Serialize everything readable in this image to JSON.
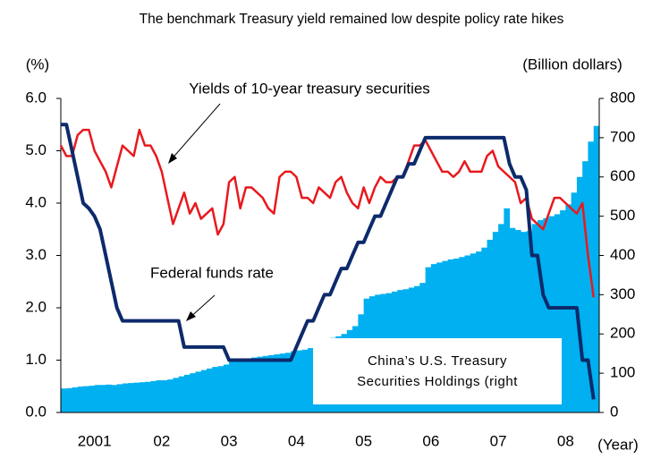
{
  "chart_data": {
    "type": "combo",
    "title": "The benchmark Treasury yield remained low despite policy rate hikes",
    "y_label": "(%)",
    "y2_label": "(Billion dollars)",
    "x_label": "(Year)",
    "xlim": [
      2001,
      2009
    ],
    "xticks": [
      {
        "value": 2001.5,
        "label": "2001"
      },
      {
        "value": 2002.5,
        "label": "02"
      },
      {
        "value": 2003.5,
        "label": "03"
      },
      {
        "value": 2004.5,
        "label": "04"
      },
      {
        "value": 2005.5,
        "label": "05"
      },
      {
        "value": 2006.5,
        "label": "06"
      },
      {
        "value": 2007.5,
        "label": "07"
      },
      {
        "value": 2008.5,
        "label": "08"
      }
    ],
    "ylim": [
      0,
      6
    ],
    "yticks": [
      {
        "value": 0,
        "label": "0.0"
      },
      {
        "value": 1,
        "label": "1.0"
      },
      {
        "value": 2,
        "label": "2.0"
      },
      {
        "value": 3,
        "label": "3.0"
      },
      {
        "value": 4,
        "label": "4.0"
      },
      {
        "value": 5,
        "label": "5.0"
      },
      {
        "value": 6,
        "label": "6.0"
      }
    ],
    "y2lim": [
      0,
      800
    ],
    "y2ticks": [
      0,
      100,
      200,
      300,
      400,
      500,
      600,
      700,
      800
    ],
    "x": [
      2001,
      2001.083,
      2001.167,
      2001.25,
      2001.333,
      2001.417,
      2001.5,
      2001.583,
      2001.667,
      2001.75,
      2001.833,
      2001.917,
      2002,
      2002.083,
      2002.167,
      2002.25,
      2002.333,
      2002.417,
      2002.5,
      2002.583,
      2002.667,
      2002.75,
      2002.833,
      2002.917,
      2003,
      2003.083,
      2003.167,
      2003.25,
      2003.333,
      2003.417,
      2003.5,
      2003.583,
      2003.667,
      2003.75,
      2003.833,
      2003.917,
      2004,
      2004.083,
      2004.167,
      2004.25,
      2004.333,
      2004.417,
      2004.5,
      2004.583,
      2004.667,
      2004.75,
      2004.833,
      2004.917,
      2005,
      2005.083,
      2005.167,
      2005.25,
      2005.333,
      2005.417,
      2005.5,
      2005.583,
      2005.667,
      2005.75,
      2005.833,
      2005.917,
      2006,
      2006.083,
      2006.167,
      2006.25,
      2006.333,
      2006.417,
      2006.5,
      2006.583,
      2006.667,
      2006.75,
      2006.833,
      2006.917,
      2007,
      2007.083,
      2007.167,
      2007.25,
      2007.333,
      2007.417,
      2007.5,
      2007.583,
      2007.667,
      2007.75,
      2007.833,
      2007.917,
      2008,
      2008.083,
      2008.167,
      2008.25,
      2008.333,
      2008.417,
      2008.5,
      2008.583,
      2008.667,
      2008.75,
      2008.833,
      2008.917
    ],
    "series": [
      {
        "name": "China’s U.S. Treasury Securities Holdings (right",
        "type": "bar",
        "axis": "y2",
        "color": "#00b0f0",
        "values": [
          61,
          62,
          64,
          66,
          67,
          68,
          70,
          70,
          71,
          70,
          72,
          74,
          75,
          76,
          77,
          78,
          80,
          82,
          82,
          84,
          88,
          92,
          96,
          100,
          104,
          108,
          112,
          116,
          118,
          122,
          130,
          134,
          136,
          138,
          140,
          142,
          144,
          146,
          148,
          150,
          152,
          156,
          158,
          160,
          164,
          170,
          176,
          184,
          190,
          194,
          200,
          210,
          220,
          250,
          290,
          296,
          300,
          302,
          304,
          308,
          312,
          314,
          318,
          322,
          330,
          370,
          378,
          382,
          386,
          390,
          392,
          396,
          400,
          405,
          410,
          420,
          440,
          460,
          480,
          520,
          470,
          465,
          460,
          462,
          480,
          490,
          495,
          500,
          505,
          515,
          530,
          560,
          600,
          640,
          690,
          730
        ]
      },
      {
        "name": "Yields of 10-year treasury securities",
        "type": "line",
        "color": "#e8191e",
        "values": [
          5.1,
          4.9,
          4.9,
          5.3,
          5.4,
          5.4,
          5.0,
          4.8,
          4.6,
          4.3,
          4.7,
          5.1,
          5.0,
          4.9,
          5.4,
          5.1,
          5.1,
          4.9,
          4.6,
          4.1,
          3.6,
          3.9,
          4.2,
          3.8,
          4.0,
          3.7,
          3.8,
          3.9,
          3.4,
          3.6,
          4.4,
          4.5,
          3.9,
          4.3,
          4.3,
          4.2,
          4.1,
          3.9,
          3.8,
          4.5,
          4.6,
          4.6,
          4.5,
          4.1,
          4.1,
          4.0,
          4.3,
          4.2,
          4.1,
          4.4,
          4.5,
          4.2,
          4.0,
          3.9,
          4.3,
          4.0,
          4.3,
          4.5,
          4.4,
          4.4,
          4.5,
          4.5,
          4.8,
          5.1,
          5.1,
          5.2,
          5.0,
          4.8,
          4.6,
          4.6,
          4.5,
          4.6,
          4.8,
          4.6,
          4.6,
          4.6,
          4.9,
          5.0,
          4.7,
          4.6,
          4.5,
          4.4,
          4.0,
          4.1,
          3.7,
          3.6,
          3.5,
          3.8,
          4.1,
          4.1,
          4.0,
          3.9,
          3.8,
          4.0,
          3.0,
          2.2
        ]
      },
      {
        "name": "Federal funds rate",
        "type": "line",
        "color": "#0d2a6b",
        "values": [
          5.5,
          5.5,
          5.0,
          4.5,
          4.0,
          3.9,
          3.75,
          3.5,
          3.0,
          2.5,
          2.0,
          1.75,
          1.75,
          1.75,
          1.75,
          1.75,
          1.75,
          1.75,
          1.75,
          1.75,
          1.75,
          1.75,
          1.25,
          1.25,
          1.25,
          1.25,
          1.25,
          1.25,
          1.25,
          1.25,
          1.0,
          1.0,
          1.0,
          1.0,
          1.0,
          1.0,
          1.0,
          1.0,
          1.0,
          1.0,
          1.0,
          1.0,
          1.25,
          1.5,
          1.75,
          1.75,
          2.0,
          2.25,
          2.25,
          2.5,
          2.75,
          2.75,
          3.0,
          3.25,
          3.25,
          3.5,
          3.75,
          3.75,
          4.0,
          4.25,
          4.5,
          4.5,
          4.75,
          4.75,
          5.0,
          5.25,
          5.25,
          5.25,
          5.25,
          5.25,
          5.25,
          5.25,
          5.25,
          5.25,
          5.25,
          5.25,
          5.25,
          5.25,
          5.25,
          5.25,
          4.75,
          4.5,
          4.5,
          4.25,
          3.0,
          3.0,
          2.25,
          2.0,
          2.0,
          2.0,
          2.0,
          2.0,
          2.0,
          1.0,
          1.0,
          0.25
        ]
      }
    ]
  }
}
